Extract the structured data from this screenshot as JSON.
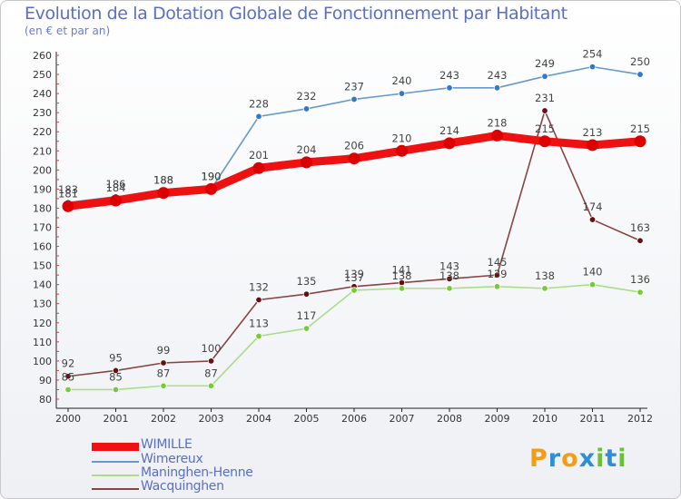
{
  "chart_data": {
    "type": "line",
    "title": "Evolution de la Dotation Globale de Fonctionnement par Habitant",
    "subtitle": "(en € et par an)",
    "categories": [
      "2000",
      "2001",
      "2002",
      "2003",
      "2004",
      "2005",
      "2006",
      "2007",
      "2008",
      "2009",
      "2010",
      "2011",
      "2012"
    ],
    "ylim": [
      80,
      260
    ],
    "yticks": [
      80,
      90,
      100,
      110,
      120,
      130,
      140,
      150,
      160,
      170,
      180,
      190,
      200,
      210,
      220,
      230,
      240,
      250,
      260
    ],
    "grid": false,
    "legend_position": "bottom-left",
    "series": [
      {
        "name": "WIMILLE",
        "color": "#ee1111",
        "dot": "#dd0000",
        "values": [
          181,
          184,
          188,
          190,
          201,
          204,
          206,
          210,
          214,
          218,
          215,
          213,
          215
        ],
        "bold": true
      },
      {
        "name": "Wimereux",
        "color": "#6699cc",
        "dot": "#3377cc",
        "values": [
          183,
          186,
          188,
          190,
          228,
          232,
          237,
          240,
          243,
          243,
          249,
          254,
          250
        ]
      },
      {
        "name": "Maninghen-Henne",
        "color": "#aadd88",
        "dot": "#77cc33",
        "values": [
          85,
          85,
          87,
          87,
          113,
          117,
          137,
          138,
          138,
          139,
          138,
          140,
          136
        ]
      },
      {
        "name": "Wacquinghen",
        "color": "#884444",
        "dot": "#661111",
        "values": [
          92,
          95,
          99,
          100,
          132,
          135,
          139,
          141,
          143,
          145,
          231,
          174,
          163
        ]
      }
    ]
  },
  "legend": {
    "items": [
      {
        "label": "WIMILLE",
        "color": "#ee1111"
      },
      {
        "label": "Wimereux",
        "color": "#6699cc"
      },
      {
        "label": "Maninghen-Henne",
        "color": "#aadd88"
      },
      {
        "label": "Wacquinghen",
        "color": "#884444"
      }
    ]
  },
  "logo": {
    "letters": [
      "P",
      "r",
      "o",
      "x",
      "i",
      "t",
      "i"
    ],
    "colors": [
      "#f29d1a",
      "#2e8fd6",
      "#f29d1a",
      "#2e8fd6",
      "#6cbf3a",
      "#2e8fd6",
      "#6cbf3a"
    ]
  }
}
